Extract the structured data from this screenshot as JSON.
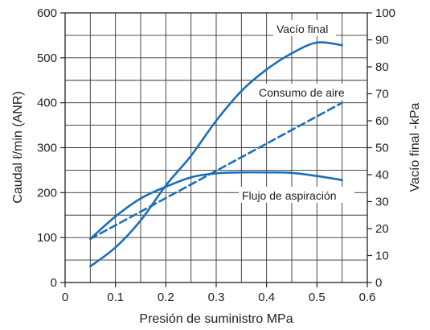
{
  "chart_data": {
    "type": "line",
    "xlabel": "Presión de suministro MPa",
    "ylabel": "Caudal ℓ/min (ANR)",
    "y2label": "Vacío final  -kPa",
    "xlim": [
      0,
      0.6
    ],
    "ylim": [
      0,
      600
    ],
    "y2lim": [
      0,
      100
    ],
    "x_ticks": [
      "0",
      "0.1",
      "0.2",
      "0.3",
      "0.4",
      "0.5",
      "0.6"
    ],
    "y_ticks": [
      "0",
      "100",
      "200",
      "300",
      "400",
      "500",
      "600"
    ],
    "y2_ticks": [
      "0",
      "10",
      "20",
      "30",
      "40",
      "50",
      "60",
      "70",
      "80",
      "90",
      "100"
    ],
    "grid": true,
    "line_color": "#1a6fb8",
    "series": [
      {
        "name": "Vacío final",
        "axis": "right",
        "style": "solid",
        "x": [
          0.05,
          0.1,
          0.15,
          0.2,
          0.25,
          0.3,
          0.35,
          0.4,
          0.45,
          0.5,
          0.55
        ],
        "y": [
          6,
          13,
          23,
          36,
          47,
          60,
          71,
          79,
          85,
          89,
          88
        ]
      },
      {
        "name": "Consumo de aire",
        "axis": "left",
        "style": "dashed",
        "x": [
          0.05,
          0.55
        ],
        "y": [
          97,
          400
        ]
      },
      {
        "name": "Flujo de aspiración",
        "axis": "left",
        "style": "solid",
        "x": [
          0.05,
          0.1,
          0.15,
          0.2,
          0.25,
          0.3,
          0.35,
          0.4,
          0.45,
          0.5,
          0.55
        ],
        "y": [
          97,
          147,
          187,
          213,
          234,
          243,
          245,
          245,
          244,
          237,
          228
        ]
      }
    ],
    "annotations": [
      {
        "text": "Vacío final",
        "series": 0
      },
      {
        "text": "Consumo de aire",
        "series": 1
      },
      {
        "text": "Flujo de aspiración",
        "series": 2
      }
    ]
  }
}
